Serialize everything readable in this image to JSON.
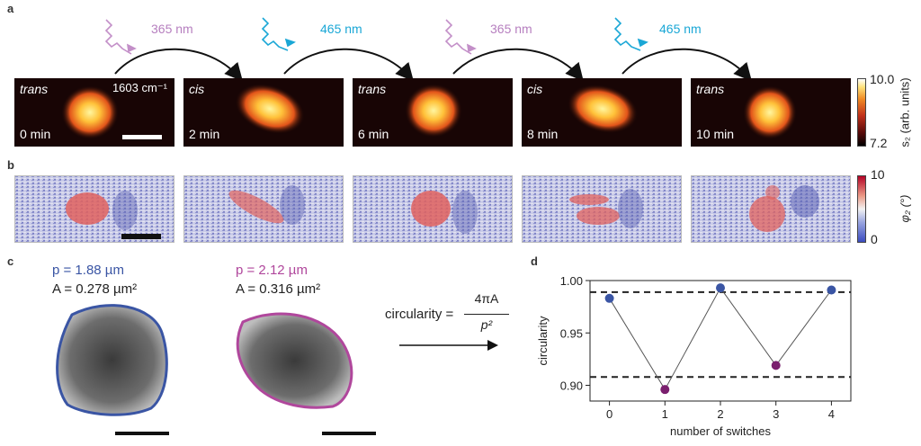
{
  "panels": {
    "a": "a",
    "b": "b",
    "c": "c",
    "d": "d"
  },
  "panel_a": {
    "frames": [
      {
        "state": "trans",
        "time": "0 min",
        "wavenumber": "1603 cm⁻¹"
      },
      {
        "state": "cis",
        "time": "2 min"
      },
      {
        "state": "trans",
        "time": "6 min"
      },
      {
        "state": "cis",
        "time": "8 min"
      },
      {
        "state": "trans",
        "time": "10 min"
      }
    ],
    "transitions": [
      "365 nm",
      "465 nm",
      "365 nm",
      "465 nm"
    ],
    "colorbar": {
      "max": "10.0",
      "min": "7.2",
      "label": "s₂ (arb. units)"
    },
    "colors": {
      "uv": "#c38fc8",
      "blue": "#1aa7d6"
    }
  },
  "panel_b": {
    "colorbar": {
      "max": "10",
      "min": "0",
      "label": "φ₂ (°)"
    }
  },
  "panel_c": {
    "shape1": {
      "p": "p = 1.88 µm",
      "A": "A = 0.278 µm²",
      "color": "#3a55a4"
    },
    "shape2": {
      "p": "p = 2.12 µm",
      "A": "A = 0.316 µm²",
      "color": "#b0479c"
    },
    "formula": {
      "lhs": "circularity =",
      "num": "4πA",
      "den": "p²"
    }
  },
  "chart_data": {
    "type": "scatter",
    "x": [
      0,
      1,
      2,
      3,
      4
    ],
    "y": [
      0.983,
      0.896,
      0.993,
      0.919,
      0.991
    ],
    "point_colors": [
      "#3a55a4",
      "#7a1f6e",
      "#3a55a4",
      "#7a1f6e",
      "#3a55a4"
    ],
    "xlabel": "number of switches",
    "ylabel": "circularity",
    "xlim": [
      -0.35,
      4.35
    ],
    "ylim": [
      0.885,
      1.0
    ],
    "xticks": [
      "0",
      "1",
      "2",
      "3",
      "4"
    ],
    "yticks": [
      "0.90",
      "0.95",
      "1.00"
    ],
    "hlines": [
      0.989,
      0.908
    ]
  }
}
